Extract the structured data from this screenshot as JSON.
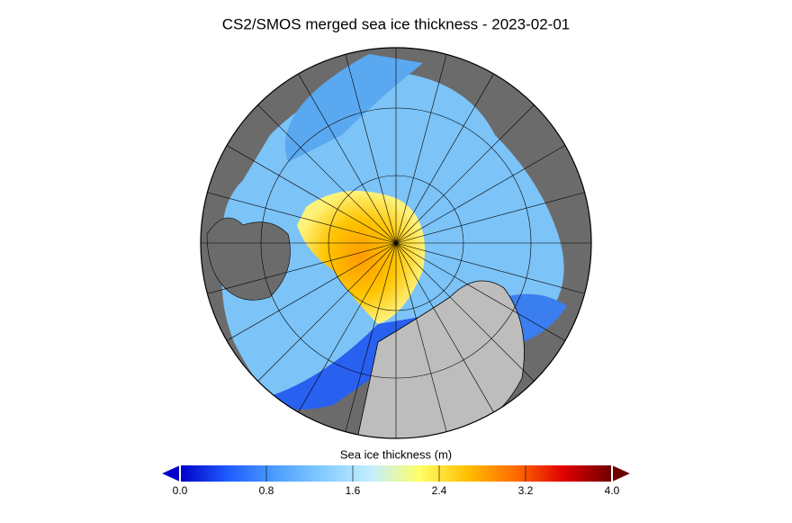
{
  "title": "CS2/SMOS merged sea ice thickness - 2023-02-01",
  "colorbar": {
    "label": "Sea ice thickness (m)",
    "range": [
      0,
      4
    ],
    "ticks": [
      {
        "value": 0,
        "label": "0.0"
      },
      0.8,
      1.6,
      2.4,
      3.2,
      {
        "value": 4,
        "label": "4.0"
      }
    ],
    "colors": [
      "#0000c8",
      "#1f5cff",
      "#4d9eff",
      "#86cdff",
      "#c4eeff",
      "#ffff66",
      "#ffbe00",
      "#ff6a00",
      "#e00000",
      "#6e0000"
    ]
  }
}
